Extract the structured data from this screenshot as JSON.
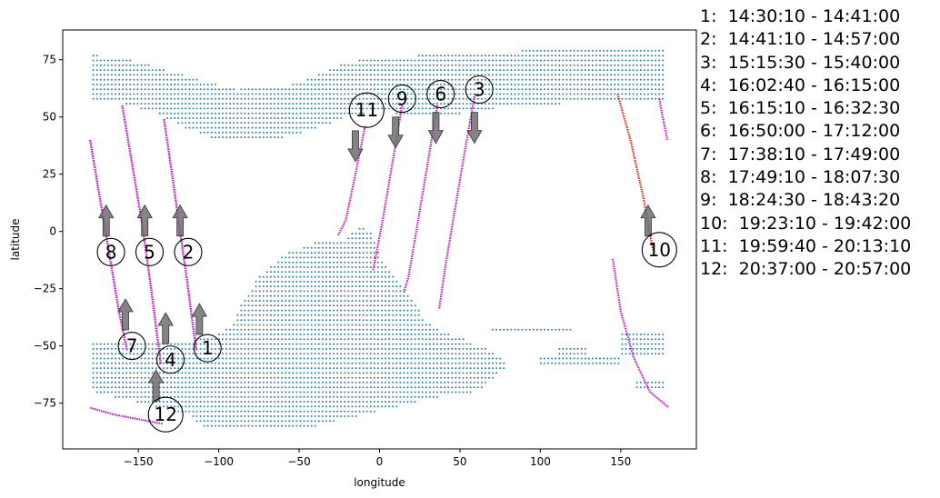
{
  "chart_data": {
    "type": "scatter",
    "title": "",
    "xlabel": "longitude",
    "ylabel": "latitude",
    "xlim": [
      -197,
      197
    ],
    "ylim": [
      -95,
      88
    ],
    "xticks": [
      -150,
      -100,
      -50,
      0,
      50,
      100,
      150
    ],
    "yticks": [
      75,
      50,
      25,
      0,
      -25,
      -50,
      -75
    ],
    "grid": false,
    "colors": {
      "land": "#2f7bab",
      "track": "#c21ec6",
      "current_track": "#e8261b",
      "arrow": "#6e6e6e"
    },
    "land_regions": [
      {
        "polygon": [
          [
            -178,
            77
          ],
          [
            -160,
            76
          ],
          [
            -120,
            68
          ],
          [
            -90,
            62
          ],
          [
            -60,
            63
          ],
          [
            -40,
            68
          ],
          [
            -20,
            74
          ],
          [
            0,
            76
          ],
          [
            30,
            77
          ],
          [
            60,
            78
          ],
          [
            90,
            79
          ],
          [
            120,
            79
          ],
          [
            150,
            79
          ],
          [
            178,
            79
          ],
          [
            178,
            57
          ],
          [
            150,
            57
          ],
          [
            120,
            56
          ],
          [
            90,
            55
          ],
          [
            60,
            53
          ],
          [
            40,
            50
          ],
          [
            20,
            50
          ],
          [
            0,
            53
          ],
          [
            -20,
            50
          ],
          [
            -40,
            45
          ],
          [
            -60,
            41
          ],
          [
            -80,
            39
          ],
          [
            -100,
            40
          ],
          [
            -120,
            45
          ],
          [
            -140,
            52
          ],
          [
            -160,
            56
          ],
          [
            -178,
            57
          ]
        ]
      },
      {
        "polygon": [
          [
            -12,
            3
          ],
          [
            -20,
            -3
          ],
          [
            -40,
            -5
          ],
          [
            -60,
            -10
          ],
          [
            -75,
            -20
          ],
          [
            -85,
            -30
          ],
          [
            -90,
            -40
          ],
          [
            -100,
            -45
          ],
          [
            -120,
            -48
          ],
          [
            -150,
            -48
          ],
          [
            -178,
            -48
          ],
          [
            -178,
            -70
          ],
          [
            -150,
            -72
          ],
          [
            -125,
            -77
          ],
          [
            -110,
            -85
          ],
          [
            -80,
            -87
          ],
          [
            -40,
            -85
          ],
          [
            -10,
            -80
          ],
          [
            20,
            -75
          ],
          [
            40,
            -72
          ],
          [
            60,
            -70
          ],
          [
            70,
            -65
          ],
          [
            80,
            -58
          ],
          [
            70,
            -52
          ],
          [
            60,
            -50
          ],
          [
            50,
            -46
          ],
          [
            40,
            -44
          ],
          [
            30,
            -40
          ],
          [
            20,
            -30
          ],
          [
            10,
            -20
          ],
          [
            0,
            -10
          ],
          [
            -5,
            0
          ]
        ]
      },
      {
        "polygon": [
          [
            70,
            -45
          ],
          [
            120,
            -45
          ],
          [
            120,
            -42
          ],
          [
            70,
            -42
          ]
        ]
      },
      {
        "polygon": [
          [
            -178,
            -65
          ],
          [
            -120,
            -65
          ],
          [
            -120,
            -80
          ],
          [
            -178,
            -70
          ]
        ]
      },
      {
        "polygon": [
          [
            110,
            -55
          ],
          [
            130,
            -55
          ],
          [
            130,
            -50
          ],
          [
            110,
            -50
          ]
        ]
      },
      {
        "polygon": [
          [
            150,
            -55
          ],
          [
            178,
            -55
          ],
          [
            178,
            -45
          ],
          [
            150,
            -45
          ]
        ]
      },
      {
        "polygon": [
          [
            100,
            -58
          ],
          [
            150,
            -58
          ],
          [
            150,
            -55
          ],
          [
            100,
            -55
          ]
        ]
      },
      {
        "polygon": [
          [
            160,
            -70
          ],
          [
            178,
            -70
          ],
          [
            178,
            -65
          ],
          [
            160,
            -65
          ]
        ]
      }
    ],
    "tracks": [
      {
        "id": 1,
        "label": "1",
        "highlight": false,
        "points": [
          [
            -134,
            49
          ],
          [
            -129,
            25
          ],
          [
            -124,
            0
          ],
          [
            -119,
            -25
          ],
          [
            -114,
            -52
          ]
        ]
      },
      {
        "id": 2,
        "label": "2",
        "highlight": false,
        "points": [
          [
            -134,
            49
          ],
          [
            -129,
            25
          ],
          [
            -124,
            0
          ],
          [
            -119,
            -25
          ],
          [
            -114,
            -52
          ]
        ]
      },
      {
        "id": 3,
        "label": "3",
        "highlight": false,
        "points": [
          [
            59,
            59
          ],
          [
            53,
            35
          ],
          [
            47,
            10
          ],
          [
            41,
            -15
          ],
          [
            37,
            -34
          ]
        ]
      },
      {
        "id": 4,
        "label": "4",
        "highlight": false,
        "points": [
          [
            -160,
            55
          ],
          [
            -154,
            30
          ],
          [
            -148,
            5
          ],
          [
            -142,
            -25
          ],
          [
            -136,
            -58
          ]
        ]
      },
      {
        "id": 5,
        "label": "5",
        "highlight": false,
        "points": [
          [
            -160,
            55
          ],
          [
            -154,
            30
          ],
          [
            -148,
            5
          ],
          [
            -142,
            -25
          ],
          [
            -136,
            -58
          ]
        ]
      },
      {
        "id": 6,
        "label": "6",
        "highlight": false,
        "points": [
          [
            36,
            56
          ],
          [
            30,
            30
          ],
          [
            24,
            5
          ],
          [
            18,
            -20
          ],
          [
            15,
            -27
          ]
        ]
      },
      {
        "id": 7,
        "label": "7",
        "highlight": false,
        "points": [
          [
            -180,
            40
          ],
          [
            -174,
            15
          ],
          [
            -168,
            -10
          ],
          [
            -162,
            -35
          ],
          [
            -157,
            -52
          ]
        ]
      },
      {
        "id": 8,
        "label": "8",
        "highlight": false,
        "points": [
          [
            -180,
            40
          ],
          [
            -174,
            15
          ],
          [
            -168,
            -10
          ],
          [
            -162,
            -35
          ],
          [
            -157,
            -52
          ]
        ]
      },
      {
        "id": 9,
        "label": "9",
        "highlight": false,
        "points": [
          [
            14,
            55
          ],
          [
            8,
            30
          ],
          [
            2,
            5
          ],
          [
            -4,
            -17
          ]
        ]
      },
      {
        "id": 10,
        "label": "10",
        "highlight": true,
        "points": [
          [
            148,
            60
          ],
          [
            156,
            40
          ],
          [
            164,
            15
          ],
          [
            170,
            -8
          ]
        ]
      },
      {
        "id": 10.5,
        "label": "",
        "highlight": false,
        "points": [
          [
            174,
            58
          ],
          [
            176,
            50
          ],
          [
            179,
            40
          ]
        ]
      },
      {
        "id": 10.6,
        "label": "",
        "highlight": false,
        "points": [
          [
            145,
            -12
          ],
          [
            150,
            -35
          ],
          [
            158,
            -55
          ],
          [
            168,
            -70
          ],
          [
            180,
            -77
          ]
        ]
      },
      {
        "id": 11,
        "label": "11",
        "highlight": false,
        "points": [
          [
            -9,
            46
          ],
          [
            -15,
            25
          ],
          [
            -21,
            5
          ],
          [
            -26,
            -2
          ]
        ]
      },
      {
        "id": 12,
        "label": "12",
        "highlight": false,
        "points": [
          [
            -180,
            -77
          ],
          [
            -165,
            -80
          ],
          [
            -150,
            -82
          ],
          [
            -135,
            -84
          ]
        ]
      }
    ],
    "markers": [
      {
        "label": "1",
        "x": -107,
        "y": -51,
        "arrow_dir": "up",
        "arrow_x": -112,
        "arrow_y": -45
      },
      {
        "label": "2",
        "x": -119,
        "y": -9,
        "arrow_dir": "up",
        "arrow_x": -124,
        "arrow_y": -2
      },
      {
        "label": "3",
        "x": 62,
        "y": 62,
        "arrow_dir": "down",
        "arrow_x": 59,
        "arrow_y": 52
      },
      {
        "label": "4",
        "x": -130,
        "y": -56,
        "arrow_dir": "up",
        "arrow_x": -133,
        "arrow_y": -49
      },
      {
        "label": "5",
        "x": -143,
        "y": -9,
        "arrow_dir": "up",
        "arrow_x": -146,
        "arrow_y": -2
      },
      {
        "label": "6",
        "x": 38,
        "y": 60,
        "arrow_dir": "down",
        "arrow_x": 35,
        "arrow_y": 52
      },
      {
        "label": "7",
        "x": -154,
        "y": -50,
        "arrow_dir": "up",
        "arrow_x": -158,
        "arrow_y": -43
      },
      {
        "label": "8",
        "x": -167,
        "y": -9,
        "arrow_dir": "up",
        "arrow_x": -170,
        "arrow_y": -2
      },
      {
        "label": "9",
        "x": 14,
        "y": 58,
        "arrow_dir": "down",
        "arrow_x": 10,
        "arrow_y": 50
      },
      {
        "label": "10",
        "x": 174,
        "y": -8,
        "arrow_dir": "up",
        "arrow_x": 167,
        "arrow_y": -2
      },
      {
        "label": "11",
        "x": -8,
        "y": 53,
        "arrow_dir": "down",
        "arrow_x": -15,
        "arrow_y": 44
      },
      {
        "label": "12",
        "x": -133,
        "y": -80,
        "arrow_dir": "up",
        "arrow_x": -139,
        "arrow_y": -74
      }
    ],
    "legend_entries": [
      "1:  14:30:10 - 14:41:00",
      "2:  14:41:10 - 14:57:00",
      "3:  15:15:30 - 15:40:00",
      "4:  16:02:40 - 16:15:00",
      "5:  16:15:10 - 16:32:30",
      "6:  16:50:00 - 17:12:00",
      "7:  17:38:10 - 17:49:00",
      "8:  17:49:10 - 18:07:30",
      "9:  18:24:30 - 18:43:20",
      "10:  19:23:10 - 19:42:00",
      "11:  19:59:40 - 20:13:10",
      "12:  20:37:00 - 20:57:00"
    ],
    "legend_placement": "right-outside"
  }
}
